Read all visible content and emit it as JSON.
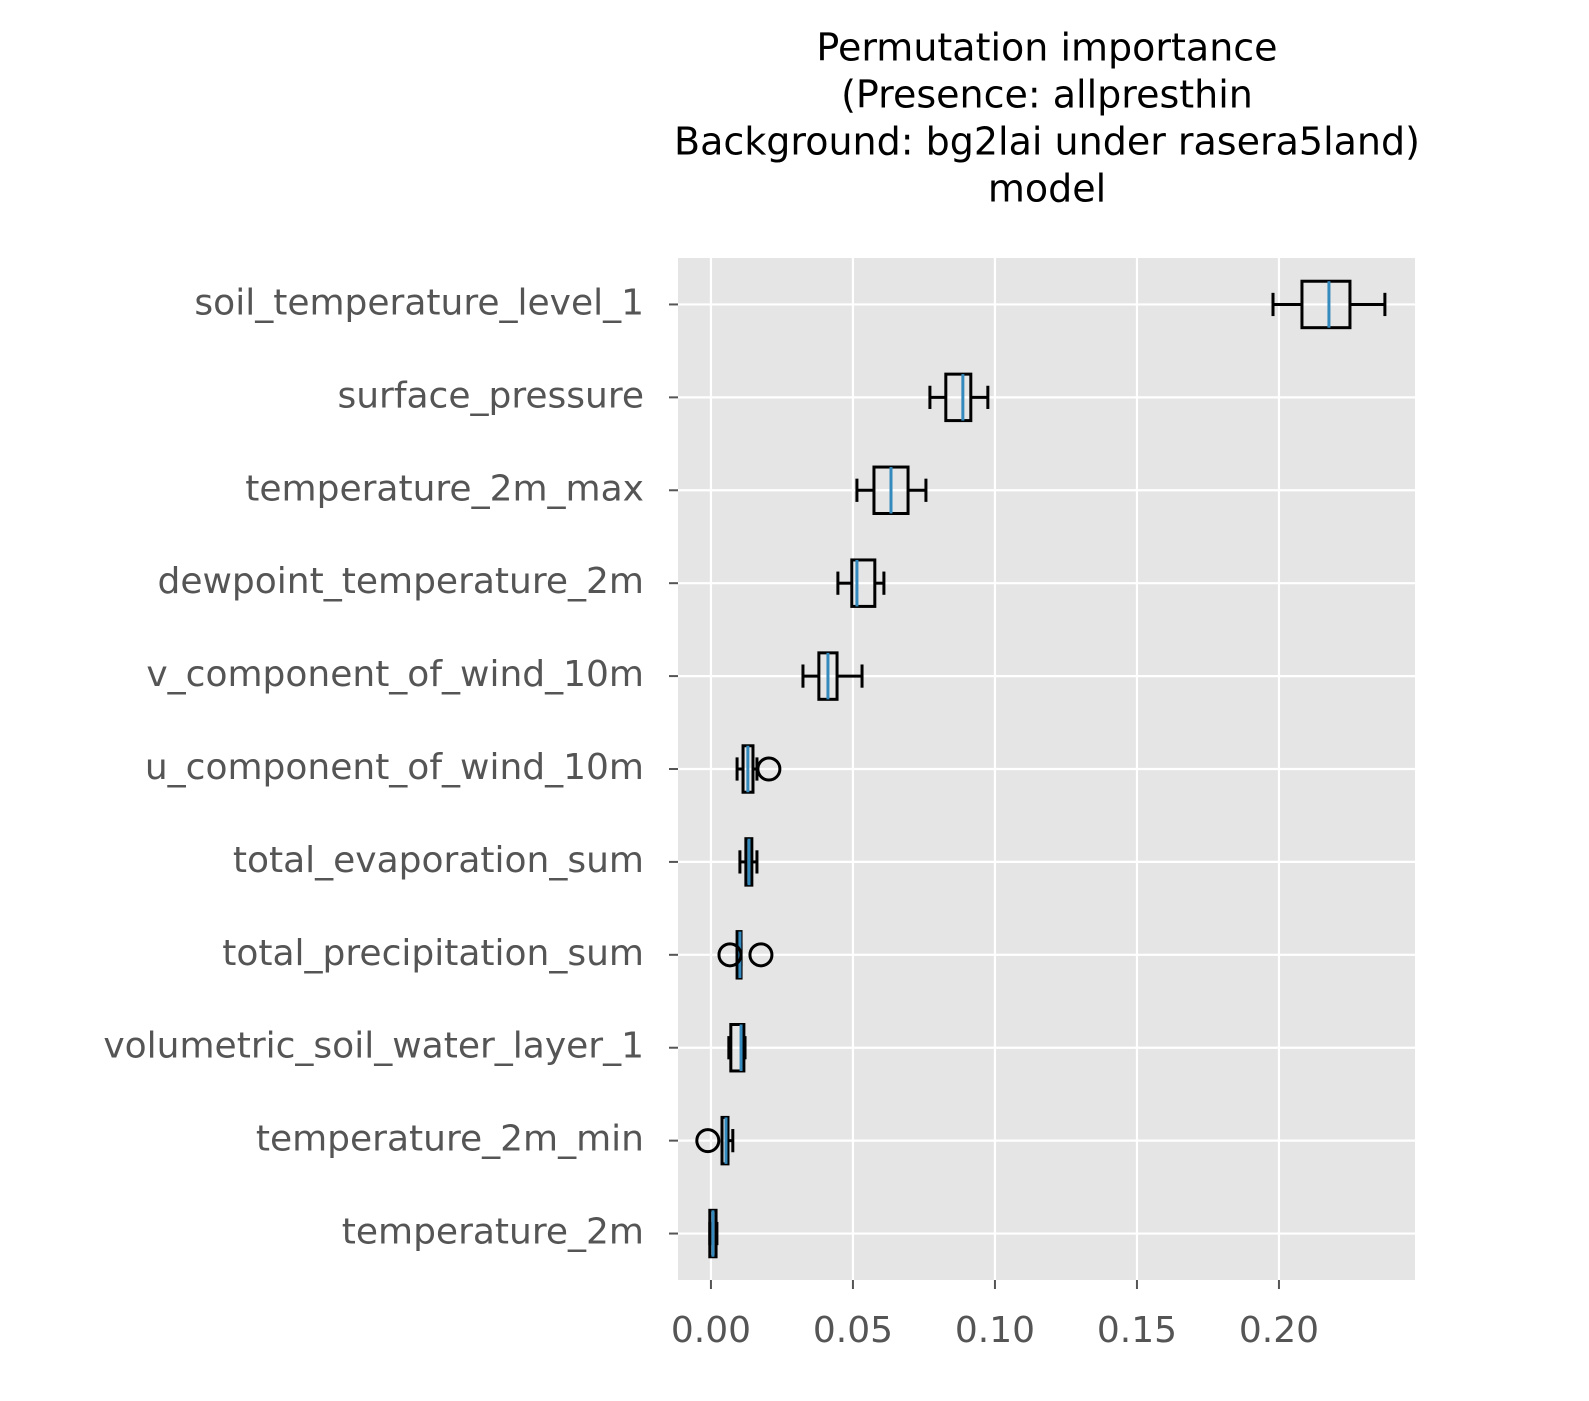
{
  "chart_data": {
    "type": "boxplot",
    "orientation": "horizontal",
    "title": [
      "Permutation importance",
      "(Presence: allpresthin",
      "Background: bg2lai under rasera5land)",
      "model"
    ],
    "categories": [
      "soil_temperature_level_1",
      "surface_pressure",
      "temperature_2m_max",
      "dewpoint_temperature_2m",
      "v_component_of_wind_10m",
      "u_component_of_wind_10m",
      "total_evaporation_sum",
      "total_precipitation_sum",
      "volumetric_soil_water_layer_1",
      "temperature_2m_min",
      "temperature_2m"
    ],
    "whislo": [
      0.1979,
      0.0771,
      0.0514,
      0.0447,
      0.0324,
      0.0092,
      0.0102,
      0.0092,
      0.0063,
      0.0039,
      -0.0004
    ],
    "q1": [
      0.2081,
      0.0827,
      0.0574,
      0.0496,
      0.038,
      0.0113,
      0.0123,
      0.0092,
      0.007,
      0.0039,
      -0.0004
    ],
    "median": [
      0.2176,
      0.0887,
      0.0634,
      0.0514,
      0.0412,
      0.013,
      0.0134,
      0.0102,
      0.0106,
      0.0053,
      0.0007
    ],
    "q3": [
      0.225,
      0.0915,
      0.0694,
      0.0577,
      0.0444,
      0.0148,
      0.0144,
      0.0106,
      0.0116,
      0.006,
      0.0018
    ],
    "whishi": [
      0.2373,
      0.0975,
      0.0757,
      0.0609,
      0.0532,
      0.0162,
      0.0162,
      0.0106,
      0.012,
      0.0077,
      0.0021
    ],
    "fliers": [
      [],
      [],
      [],
      [],
      [],
      [
        0.0204
      ],
      [],
      [
        0.0067,
        0.0176
      ],
      [],
      [
        -0.0011
      ],
      []
    ],
    "box_color": "#000000",
    "median_color": "#348abd",
    "xlim": [
      -0.0116,
      0.2479
    ],
    "xticks": [
      {
        "value": 0,
        "label": "0.00"
      },
      {
        "value": 0.05,
        "label": "0.05"
      },
      {
        "value": 0.1,
        "label": "0.10"
      },
      {
        "value": 0.15,
        "label": "0.15"
      },
      {
        "value": 0.2,
        "label": "0.20"
      }
    ],
    "grid": true
  }
}
